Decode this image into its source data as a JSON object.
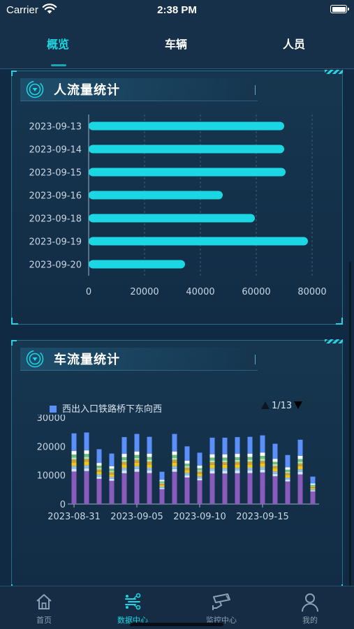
{
  "status_bar": {
    "carrier": "Carrier",
    "time": "2:38 PM"
  },
  "top_tabs": [
    {
      "label": "概览",
      "active": true
    },
    {
      "label": "车辆",
      "active": false
    },
    {
      "label": "人员",
      "active": false
    }
  ],
  "people_card": {
    "title": "人流量统计"
  },
  "vehicle_card": {
    "title": "车流量统计",
    "legend_label": "西出入口铁路桥下东向西",
    "page": "1/13"
  },
  "chart_data": [
    {
      "type": "bar",
      "orientation": "horizontal",
      "categories": [
        "2023-09-13",
        "2023-09-14",
        "2023-09-15",
        "2023-09-16",
        "2023-09-18",
        "2023-09-19",
        "2023-09-20"
      ],
      "values": [
        70000,
        70000,
        70500,
        48000,
        59500,
        78500,
        34500
      ],
      "x_ticks": [
        "0",
        "20000",
        "40000",
        "60000",
        "80000"
      ],
      "xlim": [
        0,
        80000
      ],
      "color": "#1ad7e3",
      "grid": "dashed vertical"
    },
    {
      "type": "bar",
      "stacked": true,
      "x_ticks": [
        "2023-08-31",
        "2023-09-05",
        "2023-09-10",
        "2023-09-15"
      ],
      "y_ticks": [
        "0",
        "10000",
        "20000",
        "30000"
      ],
      "ylim": [
        0,
        30000
      ],
      "legend": [
        {
          "name": "西出入口铁路桥下东向西",
          "color": "#5b8ff9"
        }
      ],
      "series_colors": [
        "#8a5bbd",
        "#d6e6f5",
        "#8fc0e8",
        "#f5c518",
        "#c9a43a",
        "#bfe3b3",
        "#6bbf80",
        "#ffffff",
        "#5b8ff9"
      ],
      "stack_fractions": [
        0.46,
        0.04,
        0.04,
        0.05,
        0.04,
        0.03,
        0.04,
        0.05,
        0.25
      ],
      "totals": [
        24500,
        24800,
        19000,
        17500,
        23200,
        24300,
        23300,
        11200,
        24300,
        20000,
        17800,
        23000,
        23000,
        23200,
        23300,
        23800,
        20900,
        17000,
        22300,
        9500
      ]
    }
  ]
}
